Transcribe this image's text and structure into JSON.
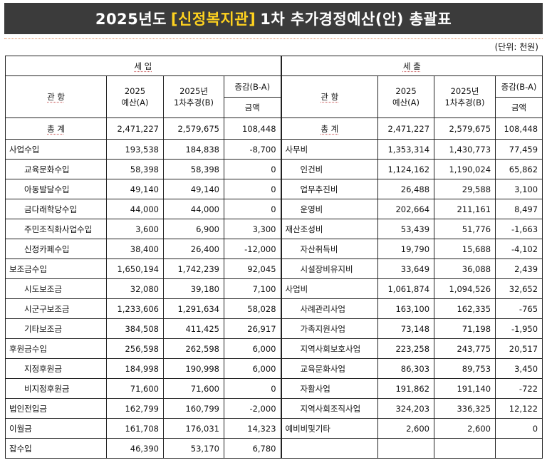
{
  "title": {
    "prefix": "2025년도",
    "org": "[신정복지관]",
    "suffix": "1차  추가경정예산(안)  총괄표"
  },
  "unit_label": "(단위: 천원)",
  "headers": {
    "income": "세      입",
    "expense": "세      출",
    "gwan_hang": "관    항",
    "budget_2025": "2025\n예산(A)",
    "supp_2025": "2025년\n1차추경(B)",
    "diff": "증감(B-A)",
    "amount": "금액"
  },
  "total": {
    "label": "총    계",
    "income": [
      "2,471,227",
      "2,579,675",
      "108,448"
    ],
    "expense": [
      "2,471,227",
      "2,579,675",
      "108,448"
    ]
  },
  "rows": [
    {
      "il": "사업수입",
      "ilvl": 1,
      "iv": [
        "193,538",
        "184,838",
        "-8,700"
      ],
      "el": "사무비",
      "elvl": 1,
      "ev": [
        "1,353,314",
        "1,430,773",
        "77,459"
      ]
    },
    {
      "il": "교육문화수입",
      "ilvl": 2,
      "iv": [
        "58,398",
        "58,398",
        "0"
      ],
      "el": "인건비",
      "elvl": 2,
      "ev": [
        "1,124,162",
        "1,190,024",
        "65,862"
      ]
    },
    {
      "il": "아동발달수입",
      "ilvl": 2,
      "iv": [
        "49,140",
        "49,140",
        "0"
      ],
      "el": "업무추진비",
      "elvl": 2,
      "ev": [
        "26,488",
        "29,588",
        "3,100"
      ]
    },
    {
      "il": "금다래학당수입",
      "ilvl": 2,
      "iv": [
        "44,000",
        "44,000",
        "0"
      ],
      "el": "운영비",
      "elvl": 2,
      "ev": [
        "202,664",
        "211,161",
        "8,497"
      ]
    },
    {
      "il": "주민조직화사업수입",
      "ilvl": 2,
      "iv": [
        "3,600",
        "6,900",
        "3,300"
      ],
      "el": "재산조성비",
      "elvl": 1,
      "ev": [
        "53,439",
        "51,776",
        "-1,663"
      ]
    },
    {
      "il": "신정카페수입",
      "ilvl": 2,
      "iv": [
        "38,400",
        "26,400",
        "-12,000"
      ],
      "el": "자산취득비",
      "elvl": 2,
      "ev": [
        "19,790",
        "15,688",
        "-4,102"
      ]
    },
    {
      "il": "보조금수입",
      "ilvl": 1,
      "iv": [
        "1,650,194",
        "1,742,239",
        "92,045"
      ],
      "el": "시설장비유지비",
      "elvl": 2,
      "ev": [
        "33,649",
        "36,088",
        "2,439"
      ]
    },
    {
      "il": "시도보조금",
      "ilvl": 2,
      "iv": [
        "32,080",
        "39,180",
        "7,100"
      ],
      "el": "사업비",
      "elvl": 1,
      "ev": [
        "1,061,874",
        "1,094,526",
        "32,652"
      ]
    },
    {
      "il": "시군구보조금",
      "ilvl": 2,
      "iv": [
        "1,233,606",
        "1,291,634",
        "58,028"
      ],
      "el": "사례관리사업",
      "elvl": 2,
      "ev": [
        "163,100",
        "162,335",
        "-765"
      ]
    },
    {
      "il": "기타보조금",
      "ilvl": 2,
      "iv": [
        "384,508",
        "411,425",
        "26,917"
      ],
      "el": "가족지원사업",
      "elvl": 2,
      "ev": [
        "73,148",
        "71,198",
        "-1,950"
      ]
    },
    {
      "il": "후원금수입",
      "ilvl": 1,
      "iv": [
        "256,598",
        "262,598",
        "6,000"
      ],
      "el": "지역사회보호사업",
      "elvl": 2,
      "ev": [
        "223,258",
        "243,775",
        "20,517"
      ]
    },
    {
      "il": "지정후원금",
      "ilvl": 2,
      "iv": [
        "184,998",
        "190,998",
        "6,000"
      ],
      "el": "교육문화사업",
      "elvl": 2,
      "ev": [
        "86,303",
        "89,753",
        "3,450"
      ]
    },
    {
      "il": "비지정후원금",
      "ilvl": 2,
      "iv": [
        "71,600",
        "71,600",
        "0"
      ],
      "el": "자활사업",
      "elvl": 2,
      "ev": [
        "191,862",
        "191,140",
        "-722"
      ]
    },
    {
      "il": "법인전입금",
      "ilvl": 1,
      "iv": [
        "162,799",
        "160,799",
        "-2,000"
      ],
      "el": "지역사회조직사업",
      "elvl": 2,
      "ev": [
        "324,203",
        "336,325",
        "12,122"
      ]
    },
    {
      "il": "이월금",
      "ilvl": 1,
      "iv": [
        "161,708",
        "176,031",
        "14,323"
      ],
      "el": "예비비및기타",
      "elvl": 1,
      "ev": [
        "2,600",
        "2,600",
        "0"
      ]
    },
    {
      "il": "잡수입",
      "ilvl": 1,
      "iv": [
        "46,390",
        "53,170",
        "6,780"
      ],
      "el": "",
      "elvl": 1,
      "ev": [
        "",
        "",
        ""
      ]
    }
  ]
}
